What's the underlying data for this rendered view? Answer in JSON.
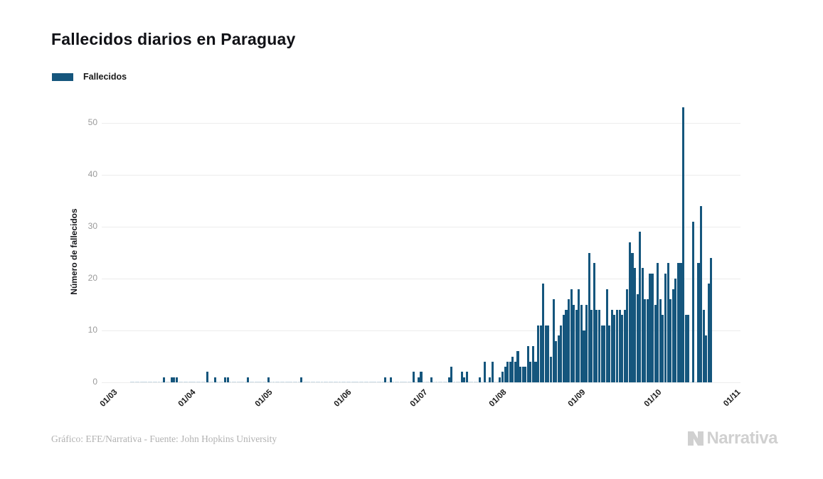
{
  "header": {
    "title": "Fallecidos diarios en Paraguay"
  },
  "legend": {
    "label": "Fallecidos",
    "swatch_color": "#15567d"
  },
  "footer": {
    "credit": "Gráfico: EFE/Narrativa - Fuente: John Hopkins University"
  },
  "branding": {
    "logo_text": "Narrativa"
  },
  "chart_data": {
    "type": "bar",
    "title": "Fallecidos diarios en Paraguay",
    "series_name": "Fallecidos",
    "xlabel": "",
    "ylabel": "Número de fallecidos",
    "ylim": [
      0,
      54.5
    ],
    "y_ticks": [
      0,
      10,
      20,
      30,
      40,
      50
    ],
    "grid": true,
    "legend_position": "top-left",
    "bar_color": "#15567d",
    "zero_mark_color": "#c9dbe6",
    "x_ticks": [
      {
        "label": "01/03",
        "day": 0
      },
      {
        "label": "01/04",
        "day": 31
      },
      {
        "label": "01/05",
        "day": 61
      },
      {
        "label": "01/06",
        "day": 92
      },
      {
        "label": "01/07",
        "day": 122
      },
      {
        "label": "01/08",
        "day": 153
      },
      {
        "label": "01/09",
        "day": 184
      },
      {
        "label": "01/10",
        "day": 214
      },
      {
        "label": "01/11",
        "day": 245
      }
    ],
    "start_date_label": "01/03",
    "first_report_day_index": 8,
    "values": [
      0,
      0,
      0,
      0,
      0,
      0,
      0,
      0,
      0,
      0,
      0,
      0,
      0,
      0,
      0,
      0,
      0,
      0,
      0,
      0,
      0,
      1,
      0,
      0,
      1,
      1,
      1,
      0,
      0,
      0,
      0,
      0,
      0,
      0,
      0,
      0,
      0,
      0,
      2,
      0,
      0,
      1,
      0,
      0,
      0,
      1,
      1,
      0,
      0,
      0,
      0,
      0,
      0,
      0,
      1,
      0,
      0,
      0,
      0,
      0,
      0,
      0,
      1,
      0,
      0,
      0,
      0,
      0,
      0,
      0,
      0,
      0,
      0,
      0,
      0,
      1,
      0,
      0,
      0,
      0,
      0,
      0,
      0,
      0,
      0,
      0,
      0,
      0,
      0,
      0,
      0,
      0,
      0,
      0,
      0,
      0,
      0,
      0,
      0,
      0,
      0,
      0,
      0,
      0,
      0,
      0,
      0,
      0,
      1,
      0,
      1,
      0,
      0,
      0,
      0,
      0,
      0,
      0,
      0,
      2,
      0,
      1,
      2,
      0,
      0,
      0,
      1,
      0,
      0,
      0,
      0,
      0,
      0,
      1,
      3,
      0,
      0,
      0,
      2,
      1,
      2,
      0,
      0,
      0,
      0,
      1,
      0,
      4,
      0,
      1,
      4,
      0,
      0,
      1,
      2,
      3,
      4,
      4,
      5,
      4,
      6,
      3,
      3,
      3,
      7,
      4,
      7,
      4,
      11,
      11,
      19,
      11,
      11,
      5,
      16,
      8,
      9,
      11,
      13,
      14,
      16,
      18,
      15,
      14,
      18,
      15,
      10,
      15,
      25,
      14,
      23,
      14,
      14,
      11,
      11,
      18,
      11,
      14,
      13,
      14,
      14,
      13,
      14,
      18,
      27,
      25,
      22,
      17,
      29,
      22,
      16,
      16,
      21,
      21,
      15,
      23,
      16,
      13,
      21,
      23,
      16,
      18,
      20,
      23,
      23,
      53,
      13,
      13,
      0,
      31,
      0,
      23,
      34,
      14,
      9,
      19,
      24
    ]
  }
}
